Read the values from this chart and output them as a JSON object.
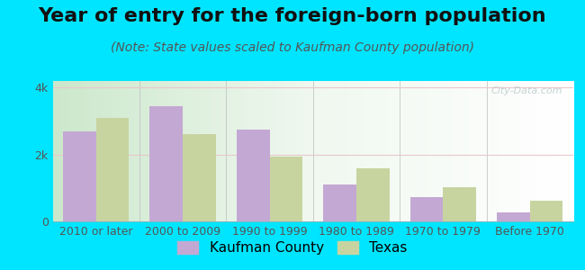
{
  "title": "Year of entry for the foreign-born population",
  "subtitle": "(Note: State values scaled to Kaufman County population)",
  "categories": [
    "2010 or later",
    "2000 to 2009",
    "1990 to 1999",
    "1980 to 1989",
    "1970 to 1979",
    "Before 1970"
  ],
  "kaufman_values": [
    2700,
    3450,
    2750,
    1100,
    720,
    280
  ],
  "texas_values": [
    3100,
    2600,
    1950,
    1600,
    1020,
    620
  ],
  "kaufman_color": "#c4a8d4",
  "texas_color": "#c8d4a0",
  "outer_background": "#00e5ff",
  "ylim": [
    0,
    4200
  ],
  "ytick_labels": [
    "0",
    "2k",
    "4k"
  ],
  "ytick_vals": [
    0,
    2000,
    4000
  ],
  "legend_kaufman": "Kaufman County",
  "legend_texas": "Texas",
  "bar_width": 0.38,
  "title_fontsize": 16,
  "subtitle_fontsize": 10,
  "axis_label_fontsize": 9,
  "legend_fontsize": 11,
  "watermark": "City-Data.com"
}
